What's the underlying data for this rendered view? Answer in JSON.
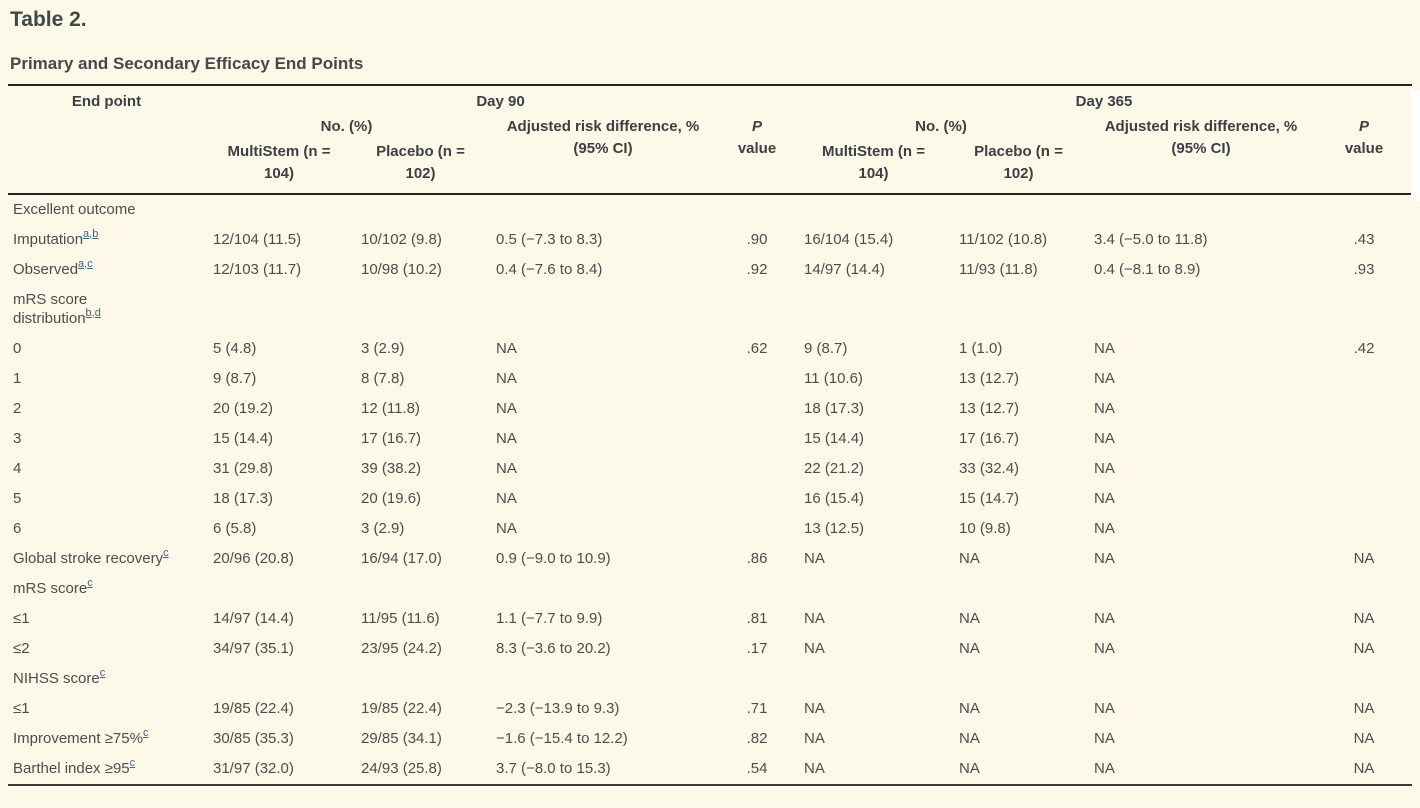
{
  "title": "Table 2.",
  "subtitle": "Primary and Secondary Efficacy End Points",
  "colors": {
    "background": "#fcf9e8",
    "rule": "#232527",
    "header_text": "#3c4044",
    "body_text": "#4b4d50",
    "footnote_link": "#3e6389"
  },
  "table": {
    "header": {
      "end_point": "End point",
      "day90": "Day 90",
      "day365": "Day 365",
      "no_pct": "No. (%)",
      "adj_risk_line1": "Adjusted risk difference, %",
      "adj_risk_line2": "(95% CI)",
      "p": "P",
      "value_word": "value",
      "multistem_line1": "MultiStem (n =",
      "multistem_line2": "104)",
      "placebo_line1": "Placebo (n =",
      "placebo_line2": "102)"
    },
    "rows": [
      {
        "lines": [
          "Excellent outcome"
        ],
        "sup": [],
        "cells": [
          "",
          "",
          "",
          "",
          "",
          "",
          "",
          ""
        ]
      },
      {
        "lines": [
          "Imputation"
        ],
        "sup": [
          "a",
          "b"
        ],
        "cells": [
          "12/104 (11.5)",
          "10/102 (9.8)",
          "0.5 (−7.3 to 8.3)",
          ".90",
          "16/104 (15.4)",
          "11/102 (10.8)",
          "3.4 (−5.0 to 11.8)",
          ".43"
        ]
      },
      {
        "lines": [
          "Observed"
        ],
        "sup": [
          "a",
          "c"
        ],
        "cells": [
          "12/103 (11.7)",
          "10/98 (10.2)",
          "0.4 (−7.6 to 8.4)",
          ".92",
          "14/97 (14.4)",
          "11/93 (11.8)",
          "0.4 (−8.1 to 8.9)",
          ".93"
        ]
      },
      {
        "lines": [
          "mRS score",
          "distribution"
        ],
        "sup": [
          "b",
          "d"
        ],
        "cells": [
          "",
          "",
          "",
          "",
          "",
          "",
          "",
          ""
        ]
      },
      {
        "lines": [
          "0"
        ],
        "sup": [],
        "cells": [
          "5 (4.8)",
          "3 (2.9)",
          "NA",
          ".62",
          "9 (8.7)",
          "1 (1.0)",
          "NA",
          ".42"
        ]
      },
      {
        "lines": [
          "1"
        ],
        "sup": [],
        "cells": [
          "9 (8.7)",
          "8 (7.8)",
          "NA",
          "",
          "11 (10.6)",
          "13 (12.7)",
          "NA",
          ""
        ]
      },
      {
        "lines": [
          "2"
        ],
        "sup": [],
        "cells": [
          "20 (19.2)",
          "12 (11.8)",
          "NA",
          "",
          "18 (17.3)",
          "13 (12.7)",
          "NA",
          ""
        ]
      },
      {
        "lines": [
          "3"
        ],
        "sup": [],
        "cells": [
          "15 (14.4)",
          "17 (16.7)",
          "NA",
          "",
          "15 (14.4)",
          "17 (16.7)",
          "NA",
          ""
        ]
      },
      {
        "lines": [
          "4"
        ],
        "sup": [],
        "cells": [
          "31 (29.8)",
          "39 (38.2)",
          "NA",
          "",
          "22 (21.2)",
          "33 (32.4)",
          "NA",
          ""
        ]
      },
      {
        "lines": [
          "5"
        ],
        "sup": [],
        "cells": [
          "18 (17.3)",
          "20 (19.6)",
          "NA",
          "",
          "16 (15.4)",
          "15 (14.7)",
          "NA",
          ""
        ]
      },
      {
        "lines": [
          "6"
        ],
        "sup": [],
        "cells": [
          "6 (5.8)",
          "3 (2.9)",
          "NA",
          "",
          "13 (12.5)",
          "10 (9.8)",
          "NA",
          ""
        ]
      },
      {
        "lines": [
          "Global stroke recovery"
        ],
        "sup": [
          "c"
        ],
        "cells": [
          "20/96 (20.8)",
          "16/94 (17.0)",
          "0.9 (−9.0 to 10.9)",
          ".86",
          "NA",
          "NA",
          "NA",
          "NA"
        ]
      },
      {
        "lines": [
          "mRS score"
        ],
        "sup": [
          "c"
        ],
        "cells": [
          "",
          "",
          "",
          "",
          "",
          "",
          "",
          ""
        ]
      },
      {
        "lines": [
          "≤1"
        ],
        "sup": [],
        "cells": [
          "14/97 (14.4)",
          "11/95 (11.6)",
          "1.1 (−7.7 to 9.9)",
          ".81",
          "NA",
          "NA",
          "NA",
          "NA"
        ]
      },
      {
        "lines": [
          "≤2"
        ],
        "sup": [],
        "cells": [
          "34/97 (35.1)",
          "23/95 (24.2)",
          "8.3 (−3.6 to 20.2)",
          ".17",
          "NA",
          "NA",
          "NA",
          "NA"
        ]
      },
      {
        "lines": [
          "NIHSS score"
        ],
        "sup": [
          "c"
        ],
        "cells": [
          "",
          "",
          "",
          "",
          "",
          "",
          "",
          ""
        ]
      },
      {
        "lines": [
          "≤1"
        ],
        "sup": [],
        "cells": [
          "19/85 (22.4)",
          "19/85 (22.4)",
          "−2.3 (−13.9 to 9.3)",
          ".71",
          "NA",
          "NA",
          "NA",
          "NA"
        ]
      },
      {
        "lines": [
          "Improvement ≥75%"
        ],
        "sup": [
          "c"
        ],
        "cells": [
          "30/85 (35.3)",
          "29/85 (34.1)",
          "−1.6 (−15.4 to 12.2)",
          ".82",
          "NA",
          "NA",
          "NA",
          "NA"
        ]
      },
      {
        "lines": [
          "Barthel index ≥95"
        ],
        "sup": [
          "c"
        ],
        "cells": [
          "31/97 (32.0)",
          "24/93 (25.8)",
          "3.7 (−8.0 to 15.3)",
          ".54",
          "NA",
          "NA",
          "NA",
          "NA"
        ]
      }
    ]
  }
}
